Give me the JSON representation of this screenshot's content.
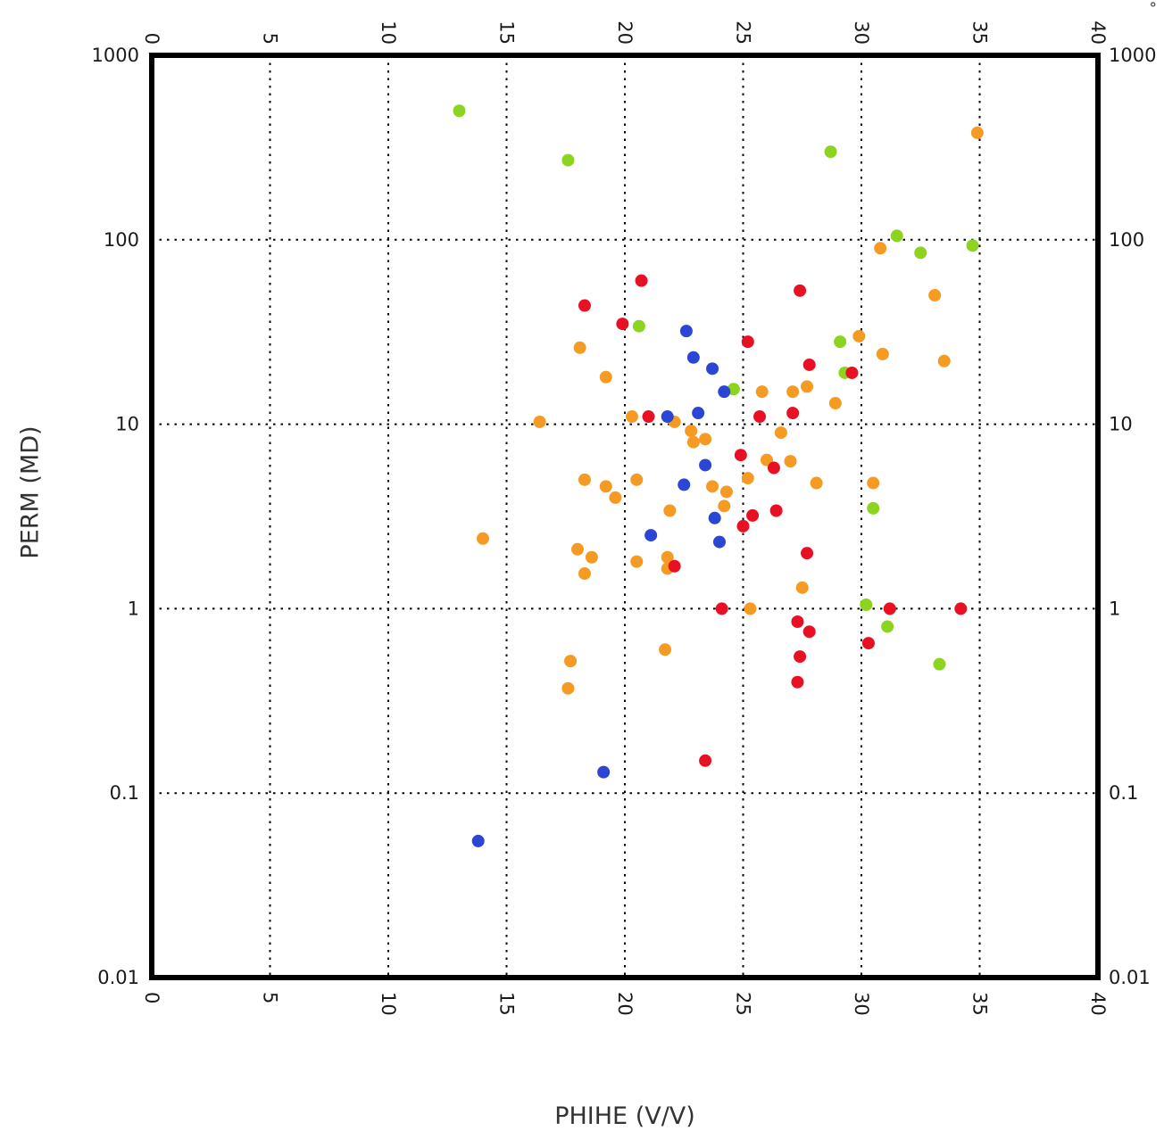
{
  "chart_data": {
    "type": "scatter",
    "title": "",
    "xlabel": "PHIHE (V/V)",
    "ylabel": "PERM (MD)",
    "corner_mark": "°",
    "xlim": [
      0,
      40
    ],
    "ylim": [
      0.01,
      1000
    ],
    "y_scale": "log",
    "x_ticks": [
      0,
      5,
      10,
      15,
      20,
      25,
      30,
      35,
      40
    ],
    "y_ticks": [
      1000,
      100,
      10,
      1,
      0.1,
      0.01
    ],
    "grid": {
      "style": "dotted",
      "color": "#000000"
    },
    "legend": "none",
    "marker": {
      "shape": "circle",
      "radius": 7
    },
    "series": [
      {
        "name": "orange",
        "color": "#f59a23",
        "points": [
          [
            34.9,
            380
          ],
          [
            30.8,
            90
          ],
          [
            33.1,
            50
          ],
          [
            29.9,
            30
          ],
          [
            30.9,
            24
          ],
          [
            33.5,
            22
          ],
          [
            18.1,
            26
          ],
          [
            19.2,
            18
          ],
          [
            27.7,
            16
          ],
          [
            25.8,
            15
          ],
          [
            27.1,
            15
          ],
          [
            28.9,
            13
          ],
          [
            16.4,
            10.3
          ],
          [
            20.3,
            11
          ],
          [
            22.1,
            10.3
          ],
          [
            22.8,
            9.2
          ],
          [
            22.9,
            8.0
          ],
          [
            23.4,
            8.3
          ],
          [
            26.6,
            9.0
          ],
          [
            26.0,
            6.4
          ],
          [
            27.0,
            6.3
          ],
          [
            25.2,
            5.1
          ],
          [
            18.3,
            5.0
          ],
          [
            19.2,
            4.6
          ],
          [
            20.5,
            5.0
          ],
          [
            23.7,
            4.6
          ],
          [
            24.3,
            4.3
          ],
          [
            28.1,
            4.8
          ],
          [
            30.5,
            4.8
          ],
          [
            19.6,
            4.0
          ],
          [
            21.9,
            3.4
          ],
          [
            24.2,
            3.6
          ],
          [
            14.0,
            2.4
          ],
          [
            18.0,
            2.1
          ],
          [
            18.6,
            1.9
          ],
          [
            20.5,
            1.8
          ],
          [
            21.8,
            1.9
          ],
          [
            21.8,
            1.65
          ],
          [
            18.3,
            1.55
          ],
          [
            25.3,
            1.0
          ],
          [
            27.5,
            1.3
          ],
          [
            21.7,
            0.6
          ],
          [
            17.7,
            0.52
          ],
          [
            17.6,
            0.37
          ]
        ]
      },
      {
        "name": "green",
        "color": "#8cd41f",
        "points": [
          [
            13.0,
            500
          ],
          [
            17.6,
            270
          ],
          [
            28.7,
            300
          ],
          [
            31.5,
            105
          ],
          [
            32.5,
            85
          ],
          [
            34.7,
            93
          ],
          [
            20.6,
            34
          ],
          [
            29.1,
            28
          ],
          [
            29.3,
            19
          ],
          [
            24.6,
            15.5
          ],
          [
            30.5,
            3.5
          ],
          [
            30.2,
            1.05
          ],
          [
            31.1,
            0.8
          ],
          [
            33.3,
            0.5
          ]
        ]
      },
      {
        "name": "red",
        "color": "#e81123",
        "points": [
          [
            20.7,
            60
          ],
          [
            18.3,
            44
          ],
          [
            19.9,
            35
          ],
          [
            27.4,
            53
          ],
          [
            25.2,
            28
          ],
          [
            27.8,
            21
          ],
          [
            29.6,
            19
          ],
          [
            21.0,
            11
          ],
          [
            25.7,
            11
          ],
          [
            27.1,
            11.5
          ],
          [
            24.9,
            6.8
          ],
          [
            26.3,
            5.8
          ],
          [
            25.4,
            3.2
          ],
          [
            26.4,
            3.4
          ],
          [
            25.0,
            2.8
          ],
          [
            27.7,
            2.0
          ],
          [
            22.1,
            1.7
          ],
          [
            24.1,
            1.0
          ],
          [
            27.3,
            0.85
          ],
          [
            27.8,
            0.75
          ],
          [
            31.2,
            1.0
          ],
          [
            34.2,
            1.0
          ],
          [
            30.3,
            0.65
          ],
          [
            27.4,
            0.55
          ],
          [
            27.3,
            0.4
          ],
          [
            23.4,
            0.15
          ]
        ]
      },
      {
        "name": "blue",
        "color": "#2b45d4",
        "points": [
          [
            22.6,
            32
          ],
          [
            22.9,
            23
          ],
          [
            23.7,
            20
          ],
          [
            24.2,
            15
          ],
          [
            21.8,
            11
          ],
          [
            23.1,
            11.5
          ],
          [
            23.4,
            6.0
          ],
          [
            22.5,
            4.7
          ],
          [
            23.8,
            3.1
          ],
          [
            21.1,
            2.5
          ],
          [
            24.0,
            2.3
          ],
          [
            19.1,
            0.13
          ],
          [
            13.8,
            0.055
          ]
        ]
      }
    ]
  }
}
